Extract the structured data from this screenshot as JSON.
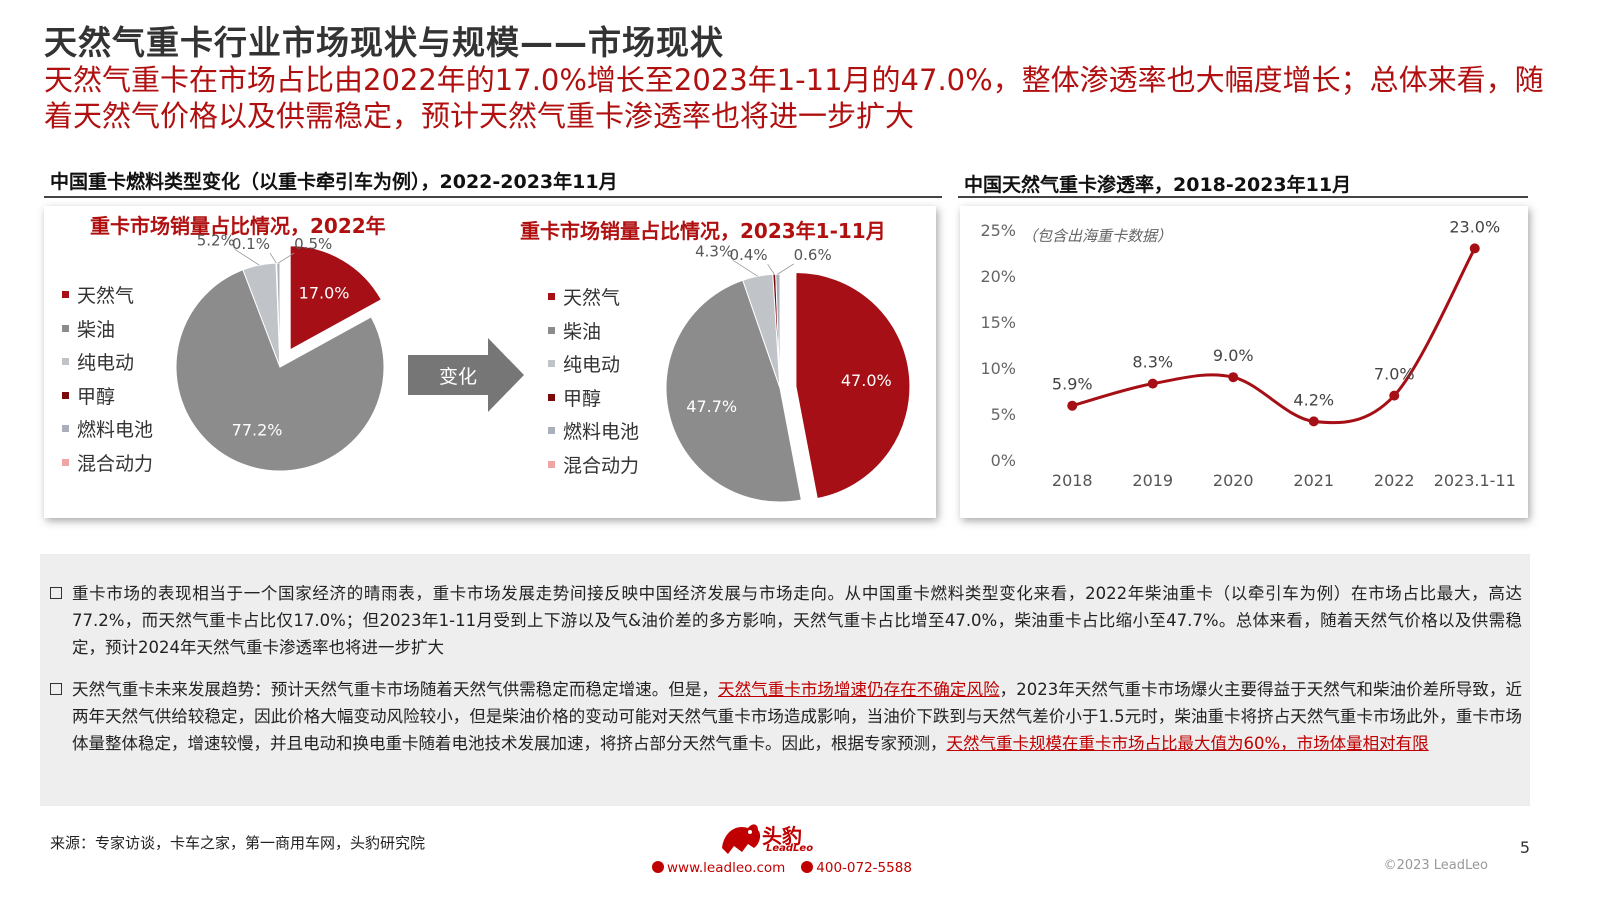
{
  "header": {
    "title": "天然气重卡行业市场现状与规模——市场现状",
    "subtitle": "天然气重卡在市场占比由2022年的17.0%增长至2023年1-11月的47.0%，整体渗透率也大幅度增长；总体来看，随着天然气价格以及供需稳定，预计天然气重卡渗透率也将进一步扩大"
  },
  "left_section": {
    "heading": "中国重卡燃料类型变化（以重卡牵引车为例），2022-2023年11月",
    "arrow_label": "变化"
  },
  "right_section": {
    "heading": "中国天然气重卡渗透率，2018-2023年11月"
  },
  "colors": {
    "natural_gas": "#a50f15",
    "diesel": "#8c8c8c",
    "electric": "#c0c4c8",
    "methanol": "#7b0b0b",
    "fuel_cell": "#a9b0bb",
    "hybrid": "#f0a5a5",
    "accent": "#c00000"
  },
  "chart_data": [
    {
      "type": "pie",
      "title": "重卡市场销量占比情况，2022年",
      "legend": [
        "天然气",
        "柴油",
        "纯电动",
        "甲醇",
        "燃料电池",
        "混合动力"
      ],
      "slices": [
        {
          "name": "天然气",
          "value": 17.0,
          "label": "17.0%",
          "color": "#a50f15",
          "exploded": true
        },
        {
          "name": "柴油",
          "value": 77.2,
          "label": "77.2%",
          "color": "#8c8c8c",
          "exploded": false
        },
        {
          "name": "纯电动",
          "value": 5.2,
          "label": "5.2%",
          "color": "#c0c4c8",
          "exploded": false
        },
        {
          "name": "甲醇",
          "value": 0.1,
          "label": "0.1%",
          "color": "#7b0b0b",
          "exploded": false
        },
        {
          "name": "燃料电池",
          "value": 0.5,
          "label": "0.5%",
          "color": "#a9b0bb",
          "exploded": false
        }
      ]
    },
    {
      "type": "pie",
      "title": "重卡市场销量占比情况，2023年1-11月",
      "legend": [
        "天然气",
        "柴油",
        "纯电动",
        "甲醇",
        "燃料电池",
        "混合动力"
      ],
      "slices": [
        {
          "name": "天然气",
          "value": 47.0,
          "label": "47.0%",
          "color": "#a50f15",
          "exploded": true
        },
        {
          "name": "柴油",
          "value": 47.7,
          "label": "47.7%",
          "color": "#8c8c8c",
          "exploded": false
        },
        {
          "name": "纯电动",
          "value": 4.3,
          "label": "4.3%",
          "color": "#c0c4c8",
          "exploded": false
        },
        {
          "name": "甲醇",
          "value": 0.4,
          "label": "0.4%",
          "color": "#7b0b0b",
          "exploded": false
        },
        {
          "name": "燃料电池",
          "value": 0.6,
          "label": "0.6%",
          "color": "#a9b0bb",
          "exploded": false
        }
      ]
    },
    {
      "type": "line",
      "title": "中国天然气重卡渗透率，2018-2023年11月",
      "annotation": "（包含出海重卡数据）",
      "categories": [
        "2018",
        "2019",
        "2020",
        "2021",
        "2022",
        "2023.1-11"
      ],
      "values": [
        5.9,
        8.3,
        9.0,
        4.2,
        7.0,
        23.0
      ],
      "value_labels": [
        "5.9%",
        "8.3%",
        "9.0%",
        "4.2%",
        "7.0%",
        "23.0%"
      ],
      "yticks": [
        "0%",
        "5%",
        "10%",
        "15%",
        "20%",
        "25%"
      ],
      "ylim": [
        0,
        25
      ],
      "grid": false,
      "smooth": true,
      "color": "#a50f15"
    }
  ],
  "notes": {
    "bullet1": "重卡市场的表现相当于一个国家经济的晴雨表，重卡市场发展走势间接反映中国经济发展与市场走向。从中国重卡燃料类型变化来看，2022年柴油重卡（以牵引车为例）在市场占比最大，高达77.2%，而天然气重卡占比仅17.0%；但2023年1-11月受到上下游以及气&油价差的多方影响，天然气重卡占比增至47.0%，柴油重卡占比缩小至47.7%。总体来看，随着天然气价格以及供需稳定，预计2024年天然气重卡渗透率也将进一步扩大",
    "bullet2_a": "天然气重卡未来发展趋势：预计天然气重卡市场随着天然气供需稳定而稳定增速。但是，",
    "bullet2_hl1": "天然气重卡市场增速仍存在不确定风险",
    "bullet2_b": "，2023年天然气重卡市场爆火主要得益于天然气和柴油价差所导致，近两年天然气供给较稳定，因此价格大幅变动风险较小，但是柴油价格的变动可能对天然气重卡市场造成影响，当油价下跌到与天然气差价小于1.5元时，柴油重卡将挤占天然气重卡市场此外，重卡市场体量整体稳定，增速较慢，并且电动和换电重卡随着电池技术发展加速，将挤占部分天然气重卡。因此，根据专家预测，",
    "bullet2_hl2": "天然气重卡规模在重卡市场占比最大值为60%，市场体量相对有限"
  },
  "footer": {
    "source": "来源：专家访谈，卡车之家，第一商用车网，头豹研究院",
    "page": "5",
    "copyright": "©2023 LeadLeo",
    "logo_cn": "头豹",
    "logo_en": "LeadLeo",
    "website": "www.leadleo.com",
    "phone": "400-072-5588"
  }
}
